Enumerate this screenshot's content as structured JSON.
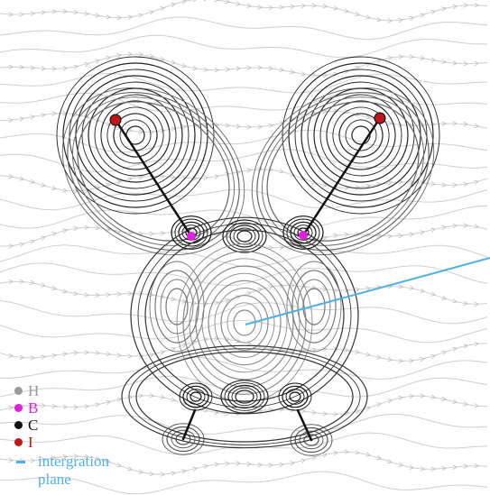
{
  "legend": {
    "items": [
      {
        "symbol": "H",
        "color": "#9a9a9a"
      },
      {
        "symbol": "B",
        "color": "#e020e0"
      },
      {
        "symbol": "C",
        "color": "#111111"
      },
      {
        "symbol": "I",
        "color": "#c01818"
      }
    ],
    "plane": {
      "line1": "intergration",
      "line2": "plane",
      "color": "#4fb0e6"
    }
  },
  "colors": {
    "iodine": "#c01818",
    "boron": "#e020e0",
    "carbon": "#111111",
    "hydrogen": "#9a9a9a",
    "plane": "#4fb0e6"
  }
}
